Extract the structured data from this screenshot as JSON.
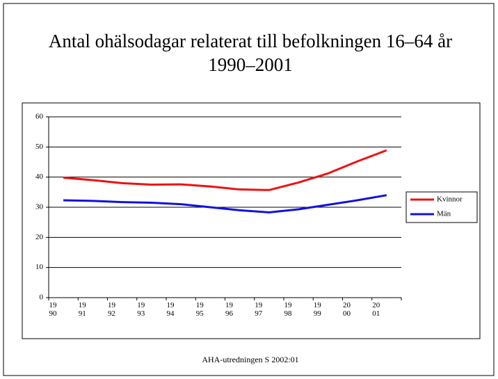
{
  "chart_data": {
    "type": "line",
    "title": "Antal ohälsodagar relaterat till befolkningen 16–64 år",
    "subtitle": "1990–2001",
    "categories": [
      "19 90",
      "19 91",
      "19 92",
      "19 93",
      "19 94",
      "19 95",
      "19 96",
      "19 97",
      "19 98",
      "19 99",
      "20 00",
      "20 01"
    ],
    "series": [
      {
        "name": "Kvinnor",
        "color": "#ee1111",
        "values": [
          39.8,
          39.0,
          38.0,
          37.5,
          37.6,
          36.9,
          35.9,
          35.7,
          38.2,
          41.2,
          45.2,
          48.9
        ]
      },
      {
        "name": "Män",
        "color": "#1111dd",
        "values": [
          32.3,
          32.1,
          31.7,
          31.5,
          31.0,
          30.0,
          29.0,
          28.3,
          29.3,
          30.8,
          32.3,
          34.0
        ]
      }
    ],
    "ylim": [
      0,
      60
    ],
    "yticks": [
      0,
      10,
      20,
      30,
      40,
      50,
      60
    ],
    "grid": true,
    "legend": "right",
    "source": "AHA-utredningen S 2002:01"
  }
}
